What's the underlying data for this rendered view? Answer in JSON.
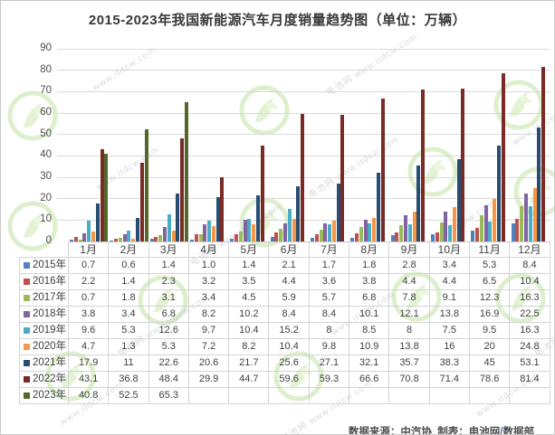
{
  "title": "2015-2023年我国新能源汽车月度销量趋势图（单位：万辆）",
  "footer": {
    "main": "数据来源：中汽协  制表：电池网",
    "slash": "/",
    "dept": "数据部"
  },
  "watermark": {
    "brand": "电池网",
    "url": "www.itdcw.com"
  },
  "chart_data": {
    "type": "bar",
    "title": "2015-2023年我国新能源汽车月度销量趋势图",
    "unit": "万辆",
    "categories": [
      "1月",
      "2月",
      "3月",
      "4月",
      "5月",
      "6月",
      "7月",
      "8月",
      "9月",
      "10月",
      "11月",
      "12月"
    ],
    "xlabel": "",
    "ylabel": "",
    "ylim": [
      0,
      90
    ],
    "ytick_step": 10,
    "y_ticks": [
      0,
      10,
      20,
      30,
      40,
      50,
      60,
      70,
      80,
      90
    ],
    "grid": true,
    "legend_position": "data-table-left",
    "series": [
      {
        "name": "2015年",
        "color": "#4f81bd",
        "values": [
          0.7,
          0.6,
          1.4,
          1.0,
          1.4,
          2.1,
          1.7,
          1.8,
          2.8,
          3.4,
          5.3,
          8.4
        ],
        "display": [
          "0.7",
          "0.6",
          "1.4",
          "1.0",
          "1.4",
          "2.1",
          "1.7",
          "1.8",
          "2.8",
          "3.4",
          "5.3",
          "8.4"
        ]
      },
      {
        "name": "2016年",
        "color": "#c0504d",
        "values": [
          2.2,
          1.4,
          2.3,
          3.2,
          3.5,
          4.4,
          3.6,
          3.8,
          4.4,
          4.4,
          6.5,
          10.4
        ],
        "display": [
          "2.2",
          "1.4",
          "2.3",
          "3.2",
          "3.5",
          "4.4",
          "3.6",
          "3.8",
          "4.4",
          "4.4",
          "6.5",
          "10.4"
        ]
      },
      {
        "name": "2017年",
        "color": "#9bbb59",
        "values": [
          0.7,
          1.8,
          3.1,
          3.4,
          4.5,
          5.9,
          5.7,
          6.8,
          7.8,
          9.1,
          12.3,
          16.3
        ],
        "display": [
          "0.7",
          "1.8",
          "3.1",
          "3.4",
          "4.5",
          "5.9",
          "5.7",
          "6.8",
          "7.8",
          "9.1",
          "12.3",
          "16.3"
        ]
      },
      {
        "name": "2018年",
        "color": "#8064a2",
        "values": [
          3.8,
          3.4,
          6.8,
          8.2,
          10.2,
          8.4,
          8.4,
          10.1,
          12.1,
          13.8,
          16.9,
          22.5
        ],
        "display": [
          "3.8",
          "3.4",
          "6.8",
          "8.2",
          "10.2",
          "8.4",
          "8.4",
          "10.1",
          "12.1",
          "13.8",
          "16.9",
          "22.5"
        ]
      },
      {
        "name": "2019年",
        "color": "#4bacc6",
        "values": [
          9.6,
          5.3,
          12.6,
          9.7,
          10.4,
          15.2,
          8,
          8.5,
          8,
          7.5,
          9.5,
          16.3
        ],
        "display": [
          "9.6",
          "5.3",
          "12.6",
          "9.7",
          "10.4",
          "15.2",
          "8",
          "8.5",
          "8",
          "7.5",
          "9.5",
          "16.3"
        ]
      },
      {
        "name": "2020年",
        "color": "#f79646",
        "values": [
          4.7,
          1.3,
          5.3,
          7.2,
          8.2,
          10.4,
          9.8,
          10.9,
          13.8,
          16,
          20,
          24.8
        ],
        "display": [
          "4.7",
          "1.3",
          "5.3",
          "7.2",
          "8.2",
          "10.4",
          "9.8",
          "10.9",
          "13.8",
          "16",
          "20",
          "24.8"
        ]
      },
      {
        "name": "2021年",
        "color": "#274e72",
        "values": [
          17.9,
          11,
          22.6,
          20.6,
          21.7,
          25.6,
          27.1,
          32.1,
          35.7,
          38.3,
          45,
          53.1
        ],
        "display": [
          "17.9",
          "11",
          "22.6",
          "20.6",
          "21.7",
          "25.6",
          "27.1",
          "32.1",
          "35.7",
          "38.3",
          "45",
          "53.1"
        ]
      },
      {
        "name": "2022年",
        "color": "#7b2b25",
        "values": [
          43.1,
          36.8,
          48.4,
          29.9,
          44.7,
          59.6,
          59.3,
          66.6,
          70.8,
          71.4,
          78.6,
          81.4
        ],
        "display": [
          "43.1",
          "36.8",
          "48.4",
          "29.9",
          "44.7",
          "59.6",
          "59.3",
          "66.6",
          "70.8",
          "71.4",
          "78.6",
          "81.4"
        ]
      },
      {
        "name": "2023年",
        "color": "#55682b",
        "values": [
          40.8,
          52.5,
          65.3,
          null,
          null,
          null,
          null,
          null,
          null,
          null,
          null,
          null
        ],
        "display": [
          "40.8",
          "52.5",
          "65.3",
          "",
          "",
          "",
          "",
          "",
          "",
          "",
          "",
          ""
        ]
      }
    ]
  }
}
